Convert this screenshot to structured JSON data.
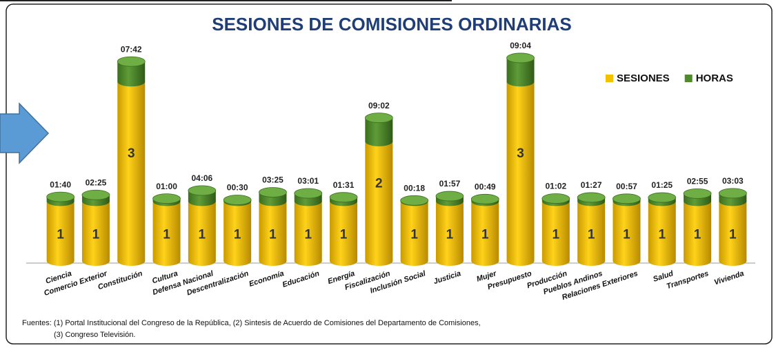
{
  "chart_data": {
    "type": "stacked-cylinder",
    "title": "SESIONES DE COMISIONES ORDINARIAS",
    "categories": [
      "Ciencia",
      "Comercio Exterior",
      "Constitución",
      "Cultura",
      "Defensa Nacional",
      "Descentralización",
      "Economía",
      "Educación",
      "Energía",
      "Fiscalización",
      "Inclusión Social",
      "Justicia",
      "Mujer",
      "Presupuesto",
      "Producción",
      "Pueblos Andinos",
      "Relaciones Exteriores",
      "Salud",
      "Transportes",
      "Vivienda"
    ],
    "series": [
      {
        "name": "SESIONES",
        "color": "#f2c200",
        "values": [
          1,
          1,
          3,
          1,
          1,
          1,
          1,
          1,
          1,
          2,
          1,
          1,
          1,
          3,
          1,
          1,
          1,
          1,
          1,
          1
        ]
      },
      {
        "name": "HORAS",
        "color": "#4f8a2c",
        "axis": "y2",
        "values": [
          1.667,
          2.417,
          7.7,
          1,
          4.1,
          0.5,
          3.417,
          3.017,
          1.517,
          9.033,
          0.3,
          1.95,
          0.817,
          9.067,
          1.033,
          1.45,
          0.95,
          1.417,
          2.917,
          3.05
        ],
        "value_labels": [
          "01:40",
          "02:25",
          "07:42",
          "01:00",
          "04:06",
          "00:30",
          "03:25",
          "03:01",
          "01:31",
          "09:02",
          "00:18",
          "01:57",
          "00:49",
          "09:04",
          "01:02",
          "01:27",
          "00:57",
          "01:25",
          "02:55",
          "03:03"
        ]
      }
    ],
    "ylim": [
      0,
      3.5
    ],
    "y2lim": [
      0,
      80
    ],
    "legend": "top-right",
    "footnote": [
      "Fuentes: (1) Portal Institucional del Congreso de la República, (2) Sintesis de Acuerdo de Comisiones del Departamento de Comisiones,",
      "(3) Congreso Televisión."
    ]
  }
}
